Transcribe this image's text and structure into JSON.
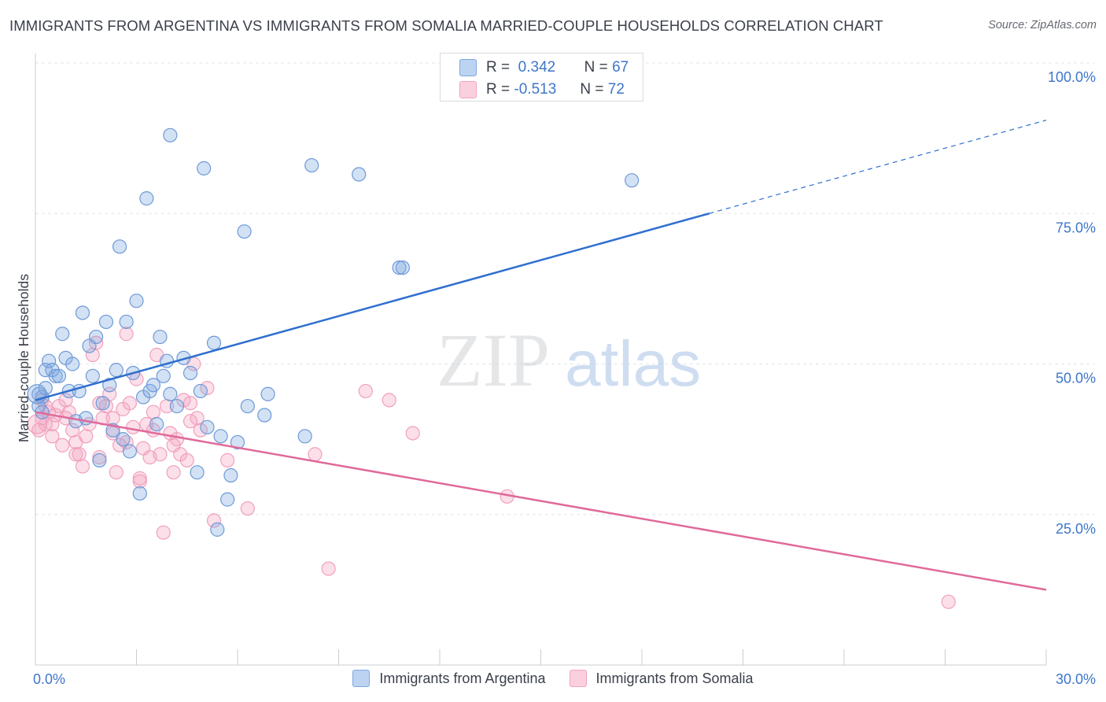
{
  "header": {
    "title": "IMMIGRANTS FROM ARGENTINA VS IMMIGRANTS FROM SOMALIA MARRIED-COUPLE HOUSEHOLDS CORRELATION CHART",
    "source": "Source: ZipAtlas.com"
  },
  "watermark": {
    "zip": "ZIP",
    "atlas": "atlas"
  },
  "stats_legend": {
    "r_label": "R =",
    "n_label": "N =",
    "rows": [
      {
        "r": "0.342",
        "n": "67"
      },
      {
        "r": "-0.513",
        "n": "72"
      }
    ]
  },
  "chart_data": {
    "type": "scatter",
    "xlabel": "",
    "ylabel": "Married-couple Households",
    "xlim": [
      0,
      30
    ],
    "ylim": [
      0,
      100
    ],
    "x_tick_labels": [
      "0.0%",
      "30.0%"
    ],
    "y_tick_labels": [
      "100.0%",
      "75.0%",
      "50.0%",
      "25.0%"
    ],
    "y_ticks": [
      100,
      75,
      50,
      25
    ],
    "grid": true,
    "legend_position": "bottom",
    "colors": {
      "argentina": "#7fa8e0",
      "somalia": "#f4a3bf",
      "argentina_line": "#2f6fcf",
      "somalia_line": "#e0699a",
      "tick_text": "#3d76c9"
    },
    "series": [
      {
        "name": "Immigrants from Argentina",
        "trend": {
          "x": [
            0,
            20
          ],
          "y": [
            44,
            75
          ],
          "dashed_to": [
            30,
            90.5
          ]
        },
        "points": [
          [
            0.1,
            45
          ],
          [
            0.2,
            44.5
          ],
          [
            0.3,
            49
          ],
          [
            0.4,
            50.5
          ],
          [
            0.5,
            49
          ],
          [
            0.6,
            48
          ],
          [
            0.7,
            48
          ],
          [
            0.8,
            55
          ],
          [
            0.9,
            51
          ],
          [
            1.0,
            45.5
          ],
          [
            1.1,
            50
          ],
          [
            1.2,
            40.5
          ],
          [
            1.3,
            45.5
          ],
          [
            1.4,
            58.5
          ],
          [
            1.5,
            41
          ],
          [
            1.6,
            53
          ],
          [
            1.7,
            48
          ],
          [
            1.8,
            54.5
          ],
          [
            1.9,
            34
          ],
          [
            2.0,
            43.5
          ],
          [
            2.1,
            57
          ],
          [
            2.2,
            46.5
          ],
          [
            2.3,
            39
          ],
          [
            2.4,
            49
          ],
          [
            2.5,
            69.5
          ],
          [
            2.6,
            37.5
          ],
          [
            2.7,
            57
          ],
          [
            2.8,
            35.5
          ],
          [
            2.9,
            48.5
          ],
          [
            3.0,
            60.5
          ],
          [
            3.1,
            28.5
          ],
          [
            3.2,
            44.5
          ],
          [
            3.3,
            77.5
          ],
          [
            3.4,
            45.5
          ],
          [
            3.5,
            46.5
          ],
          [
            3.6,
            40
          ],
          [
            3.7,
            54.5
          ],
          [
            3.8,
            48
          ],
          [
            3.9,
            50.5
          ],
          [
            4.0,
            45
          ],
          [
            4.0,
            88
          ],
          [
            4.2,
            43
          ],
          [
            4.4,
            51
          ],
          [
            4.6,
            48.5
          ],
          [
            4.8,
            32
          ],
          [
            4.9,
            45.5
          ],
          [
            5.0,
            82.5
          ],
          [
            5.1,
            39.5
          ],
          [
            5.3,
            53.5
          ],
          [
            5.4,
            22.5
          ],
          [
            5.5,
            38
          ],
          [
            5.7,
            27.5
          ],
          [
            5.8,
            31.5
          ],
          [
            6.0,
            37
          ],
          [
            6.2,
            72
          ],
          [
            6.3,
            43
          ],
          [
            6.8,
            41.5
          ],
          [
            6.9,
            45
          ],
          [
            8.0,
            38
          ],
          [
            8.2,
            83
          ],
          [
            9.6,
            81.5
          ],
          [
            10.8,
            66
          ],
          [
            10.9,
            66
          ],
          [
            17.7,
            80.5
          ],
          [
            0.1,
            43
          ],
          [
            0.2,
            42
          ],
          [
            0.3,
            46
          ]
        ]
      },
      {
        "name": "Immigrants from Somalia",
        "trend": {
          "x": [
            0,
            30
          ],
          "y": [
            42,
            12.5
          ]
        },
        "points": [
          [
            0.1,
            39
          ],
          [
            0.2,
            41
          ],
          [
            0.3,
            43
          ],
          [
            0.4,
            42
          ],
          [
            0.5,
            40
          ],
          [
            0.6,
            41.5
          ],
          [
            0.7,
            43
          ],
          [
            0.8,
            36.5
          ],
          [
            0.9,
            44
          ],
          [
            1.0,
            42
          ],
          [
            1.1,
            39
          ],
          [
            1.2,
            37
          ],
          [
            1.3,
            35
          ],
          [
            1.4,
            33
          ],
          [
            1.5,
            38
          ],
          [
            1.6,
            40
          ],
          [
            1.7,
            51.5
          ],
          [
            1.8,
            53.5
          ],
          [
            1.9,
            34.5
          ],
          [
            2.0,
            41
          ],
          [
            2.1,
            43
          ],
          [
            2.2,
            45
          ],
          [
            2.3,
            38.5
          ],
          [
            2.4,
            32
          ],
          [
            2.5,
            36.5
          ],
          [
            2.6,
            42.5
          ],
          [
            2.7,
            55
          ],
          [
            2.8,
            43.5
          ],
          [
            2.9,
            39.5
          ],
          [
            3.0,
            47.5
          ],
          [
            3.1,
            31
          ],
          [
            3.2,
            36
          ],
          [
            3.3,
            40
          ],
          [
            3.4,
            34.5
          ],
          [
            3.5,
            42
          ],
          [
            3.6,
            51.5
          ],
          [
            3.7,
            35
          ],
          [
            3.8,
            22
          ],
          [
            3.9,
            43
          ],
          [
            4.0,
            38.5
          ],
          [
            4.1,
            32
          ],
          [
            4.2,
            37.5
          ],
          [
            4.3,
            35
          ],
          [
            4.4,
            44
          ],
          [
            4.6,
            43.5
          ],
          [
            4.7,
            50
          ],
          [
            4.8,
            41
          ],
          [
            4.9,
            39
          ],
          [
            5.1,
            46
          ],
          [
            5.3,
            24
          ],
          [
            5.7,
            34
          ],
          [
            6.3,
            26
          ],
          [
            8.3,
            35
          ],
          [
            8.7,
            16
          ],
          [
            9.8,
            45.5
          ],
          [
            10.5,
            44
          ],
          [
            11.2,
            38.5
          ],
          [
            14.0,
            28
          ],
          [
            27.1,
            10.5
          ],
          [
            0.2,
            44
          ],
          [
            0.3,
            40
          ],
          [
            0.5,
            38
          ],
          [
            0.9,
            41
          ],
          [
            1.2,
            35
          ],
          [
            1.9,
            43.5
          ],
          [
            2.3,
            41
          ],
          [
            2.7,
            37
          ],
          [
            3.1,
            30.5
          ],
          [
            3.5,
            39
          ],
          [
            4.1,
            36.5
          ],
          [
            4.5,
            34
          ],
          [
            4.6,
            40.5
          ]
        ]
      }
    ]
  }
}
